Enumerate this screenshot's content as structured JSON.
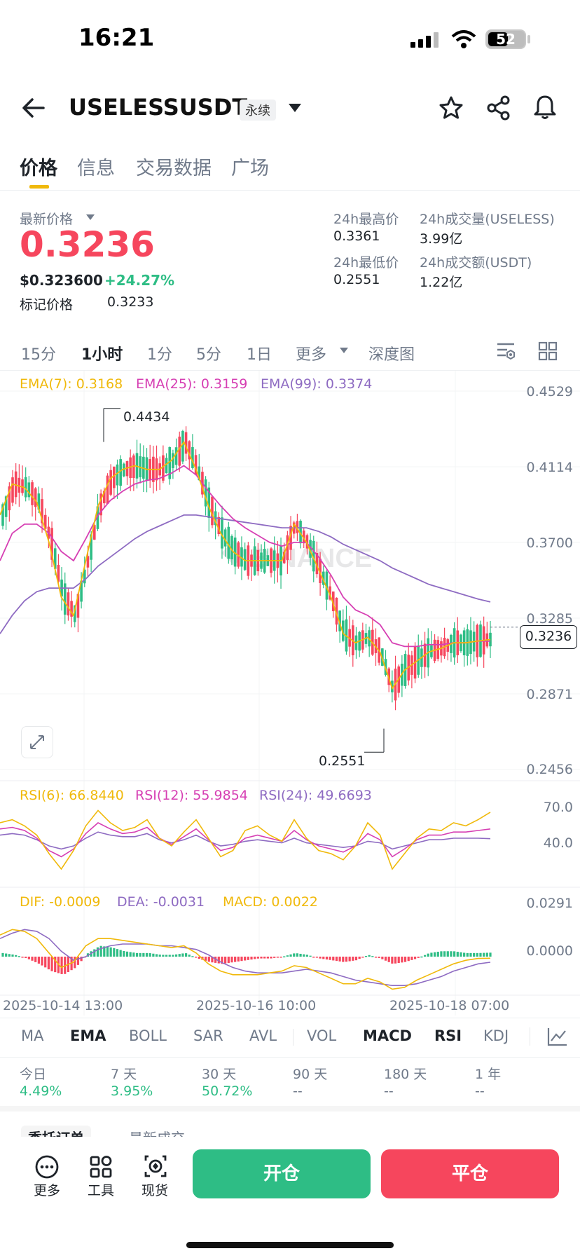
{
  "status_bar": {
    "time": "16:21",
    "battery": "52"
  },
  "header": {
    "symbol": "USELESSUSDT",
    "contract_type": "永续",
    "icons": [
      "back-arrow-icon",
      "dropdown-triangle-icon",
      "star-icon",
      "share-icon",
      "bell-icon"
    ]
  },
  "tabs": [
    {
      "label": "价格"
    },
    {
      "label": "信息"
    },
    {
      "label": "交易数据"
    },
    {
      "label": "广场"
    }
  ],
  "price": {
    "last_label": "最新价格",
    "last": "0.3236",
    "usd": "$0.323600",
    "change": "+24.27%",
    "mark_label": "标记价格",
    "mark": "0.3233"
  },
  "stats": {
    "high_label": "24h最高价",
    "high": "0.3361",
    "vol_base_label": "24h成交量(USELESS)",
    "vol_base": "3.99亿",
    "low_label": "24h最低价",
    "low": "0.2551",
    "vol_quote_label": "24h成交额(USDT)",
    "vol_quote": "1.22亿"
  },
  "timeframes": [
    {
      "label": "15分"
    },
    {
      "label": "1小时"
    },
    {
      "label": "1分"
    },
    {
      "label": "5分"
    },
    {
      "label": "1日"
    },
    {
      "label": "更多"
    },
    {
      "label": "深度图"
    }
  ],
  "colors": {
    "up": "#2ebd85",
    "down": "#f6465d",
    "brand": "#f0b90b",
    "ema7": "#f0b90b",
    "ema25": "#d63fb3",
    "ema99": "#8e6bc2"
  },
  "indicator_tabs": [
    {
      "label": "MA"
    },
    {
      "label": "EMA"
    },
    {
      "label": "BOLL"
    },
    {
      "label": "SAR"
    },
    {
      "label": "AVL"
    },
    {
      "label": "VOL"
    },
    {
      "label": "MACD"
    },
    {
      "label": "RSI"
    },
    {
      "label": "KDJ"
    }
  ],
  "performance": [
    {
      "label": "今日",
      "value": "4.49%"
    },
    {
      "label": "7 天",
      "value": "3.95%"
    },
    {
      "label": "30 天",
      "value": "50.72%"
    },
    {
      "label": "90 天",
      "value": "--"
    },
    {
      "label": "180 天",
      "value": "--"
    },
    {
      "label": "1 年",
      "value": "--"
    }
  ],
  "order_tabs_partial": [
    "委托订单",
    "最新成交"
  ],
  "bottom_nav": [
    {
      "label": "更多"
    },
    {
      "label": "工具"
    },
    {
      "label": "现货"
    }
  ],
  "actions": {
    "open": "开仓",
    "close": "平仓"
  },
  "chart_data": [
    {
      "type": "candlestick",
      "interval": "1小时",
      "legend": [
        "EMA(7): 0.3168",
        "EMA(25): 0.3159",
        "EMA(99): 0.3374"
      ],
      "y_ticks": [
        "0.4529",
        "0.4114",
        "0.3700",
        "0.3285",
        "0.2871",
        "0.2456"
      ],
      "ylim": [
        0.2456,
        0.4529
      ],
      "annotations": {
        "high": "0.4434",
        "low": "0.2551",
        "last": "0.3236"
      },
      "x_ticks": [
        "2025-10-14 13:00",
        "2025-10-16 10:00",
        "2025-10-18 07:00"
      ],
      "ema7": [
        0.385,
        0.402,
        0.4,
        0.392,
        0.37,
        0.34,
        0.33,
        0.36,
        0.39,
        0.405,
        0.41,
        0.412,
        0.41,
        0.41,
        0.415,
        0.425,
        0.41,
        0.39,
        0.375,
        0.365,
        0.36,
        0.36,
        0.36,
        0.36,
        0.38,
        0.37,
        0.355,
        0.34,
        0.32,
        0.315,
        0.318,
        0.31,
        0.29,
        0.3,
        0.305,
        0.31,
        0.312,
        0.315,
        0.315,
        0.316,
        0.3168
      ],
      "ema25": [
        0.36,
        0.375,
        0.38,
        0.38,
        0.375,
        0.365,
        0.36,
        0.372,
        0.385,
        0.393,
        0.398,
        0.402,
        0.404,
        0.405,
        0.408,
        0.412,
        0.407,
        0.398,
        0.39,
        0.383,
        0.378,
        0.374,
        0.37,
        0.368,
        0.37,
        0.37,
        0.362,
        0.352,
        0.34,
        0.333,
        0.33,
        0.325,
        0.315,
        0.313,
        0.313,
        0.314,
        0.314,
        0.315,
        0.315,
        0.316,
        0.3159
      ],
      "ema99": [
        0.32,
        0.33,
        0.338,
        0.343,
        0.345,
        0.345,
        0.345,
        0.35,
        0.357,
        0.362,
        0.367,
        0.372,
        0.376,
        0.379,
        0.382,
        0.385,
        0.385,
        0.384,
        0.383,
        0.382,
        0.381,
        0.38,
        0.379,
        0.378,
        0.378,
        0.378,
        0.376,
        0.373,
        0.369,
        0.366,
        0.363,
        0.36,
        0.356,
        0.353,
        0.35,
        0.347,
        0.345,
        0.343,
        0.341,
        0.339,
        0.3374
      ]
    },
    {
      "type": "line",
      "indicator": "RSI",
      "legend": [
        "RSI(6): 66.8440",
        "RSI(12): 55.9854",
        "RSI(24): 49.6693"
      ],
      "y_ticks": [
        "70.0",
        "40.0"
      ],
      "rsi6": [
        60,
        62,
        58,
        52,
        40,
        30,
        42,
        58,
        68,
        60,
        55,
        57,
        62,
        50,
        45,
        54,
        62,
        50,
        38,
        42,
        55,
        58,
        52,
        48,
        62,
        50,
        42,
        40,
        36,
        45,
        60,
        52,
        30,
        40,
        50,
        56,
        55,
        60,
        58,
        62,
        66.844
      ],
      "rsi12": [
        56,
        57,
        55,
        50,
        42,
        38,
        43,
        53,
        60,
        56,
        53,
        54,
        57,
        50,
        46,
        51,
        56,
        49,
        42,
        44,
        50,
        52,
        50,
        48,
        55,
        49,
        45,
        43,
        41,
        45,
        53,
        49,
        38,
        43,
        49,
        52,
        52,
        54,
        54,
        55,
        55.9854
      ],
      "rsi24": [
        52,
        53,
        52,
        49,
        45,
        43,
        45,
        50,
        54,
        52,
        51,
        51,
        53,
        49,
        47,
        49,
        52,
        48,
        45,
        46,
        48,
        49,
        48,
        47,
        50,
        47,
        46,
        45,
        44,
        45,
        48,
        47,
        43,
        45,
        47,
        49,
        49,
        50,
        50,
        50,
        49.6693
      ]
    },
    {
      "type": "bar",
      "indicator": "MACD",
      "legend": [
        "DIF: -0.0009",
        "DEA: -0.0031",
        "MACD: 0.0022"
      ],
      "y_ticks": [
        "0.0291",
        "0.0000"
      ],
      "histogram": [
        0.002,
        0.001,
        -0.001,
        -0.004,
        -0.008,
        -0.01,
        -0.006,
        0.002,
        0.006,
        0.005,
        0.003,
        0.002,
        0.002,
        0.001,
        0.001,
        0.002,
        -0.001,
        -0.003,
        -0.004,
        -0.003,
        -0.002,
        -0.001,
        -0.001,
        0.0,
        0.002,
        0.001,
        -0.001,
        -0.002,
        -0.003,
        -0.002,
        0.001,
        -0.001,
        -0.004,
        -0.003,
        -0.001,
        0.002,
        0.003,
        0.003,
        0.002,
        0.002,
        0.0022
      ],
      "dif": [
        0.012,
        0.015,
        0.014,
        0.01,
        0.002,
        -0.006,
        -0.003,
        0.006,
        0.01,
        0.01,
        0.009,
        0.008,
        0.007,
        0.006,
        0.005,
        0.006,
        0.002,
        -0.004,
        -0.008,
        -0.01,
        -0.01,
        -0.01,
        -0.009,
        -0.008,
        -0.005,
        -0.006,
        -0.009,
        -0.012,
        -0.015,
        -0.015,
        -0.012,
        -0.014,
        -0.018,
        -0.017,
        -0.013,
        -0.01,
        -0.007,
        -0.004,
        -0.002,
        -0.001,
        -0.0009
      ],
      "dea": [
        0.01,
        0.013,
        0.015,
        0.014,
        0.01,
        0.003,
        -0.002,
        0.0,
        0.004,
        0.006,
        0.007,
        0.007,
        0.007,
        0.006,
        0.006,
        0.005,
        0.004,
        0.001,
        -0.003,
        -0.006,
        -0.008,
        -0.009,
        -0.009,
        -0.009,
        -0.008,
        -0.007,
        -0.008,
        -0.009,
        -0.011,
        -0.013,
        -0.014,
        -0.015,
        -0.016,
        -0.016,
        -0.015,
        -0.013,
        -0.011,
        -0.008,
        -0.006,
        -0.004,
        -0.0031
      ]
    }
  ]
}
